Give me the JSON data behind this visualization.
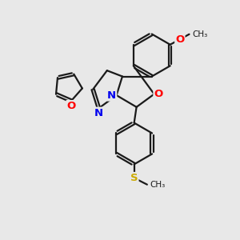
{
  "background_color": "#e8e8e8",
  "bond_color": "#1a1a1a",
  "bond_lw": 1.6,
  "atom_colors": {
    "O": "#ff0000",
    "N": "#0000ee",
    "S": "#ccaa00",
    "C": "#1a1a1a"
  },
  "figsize": [
    3.0,
    3.0
  ],
  "dpi": 100
}
